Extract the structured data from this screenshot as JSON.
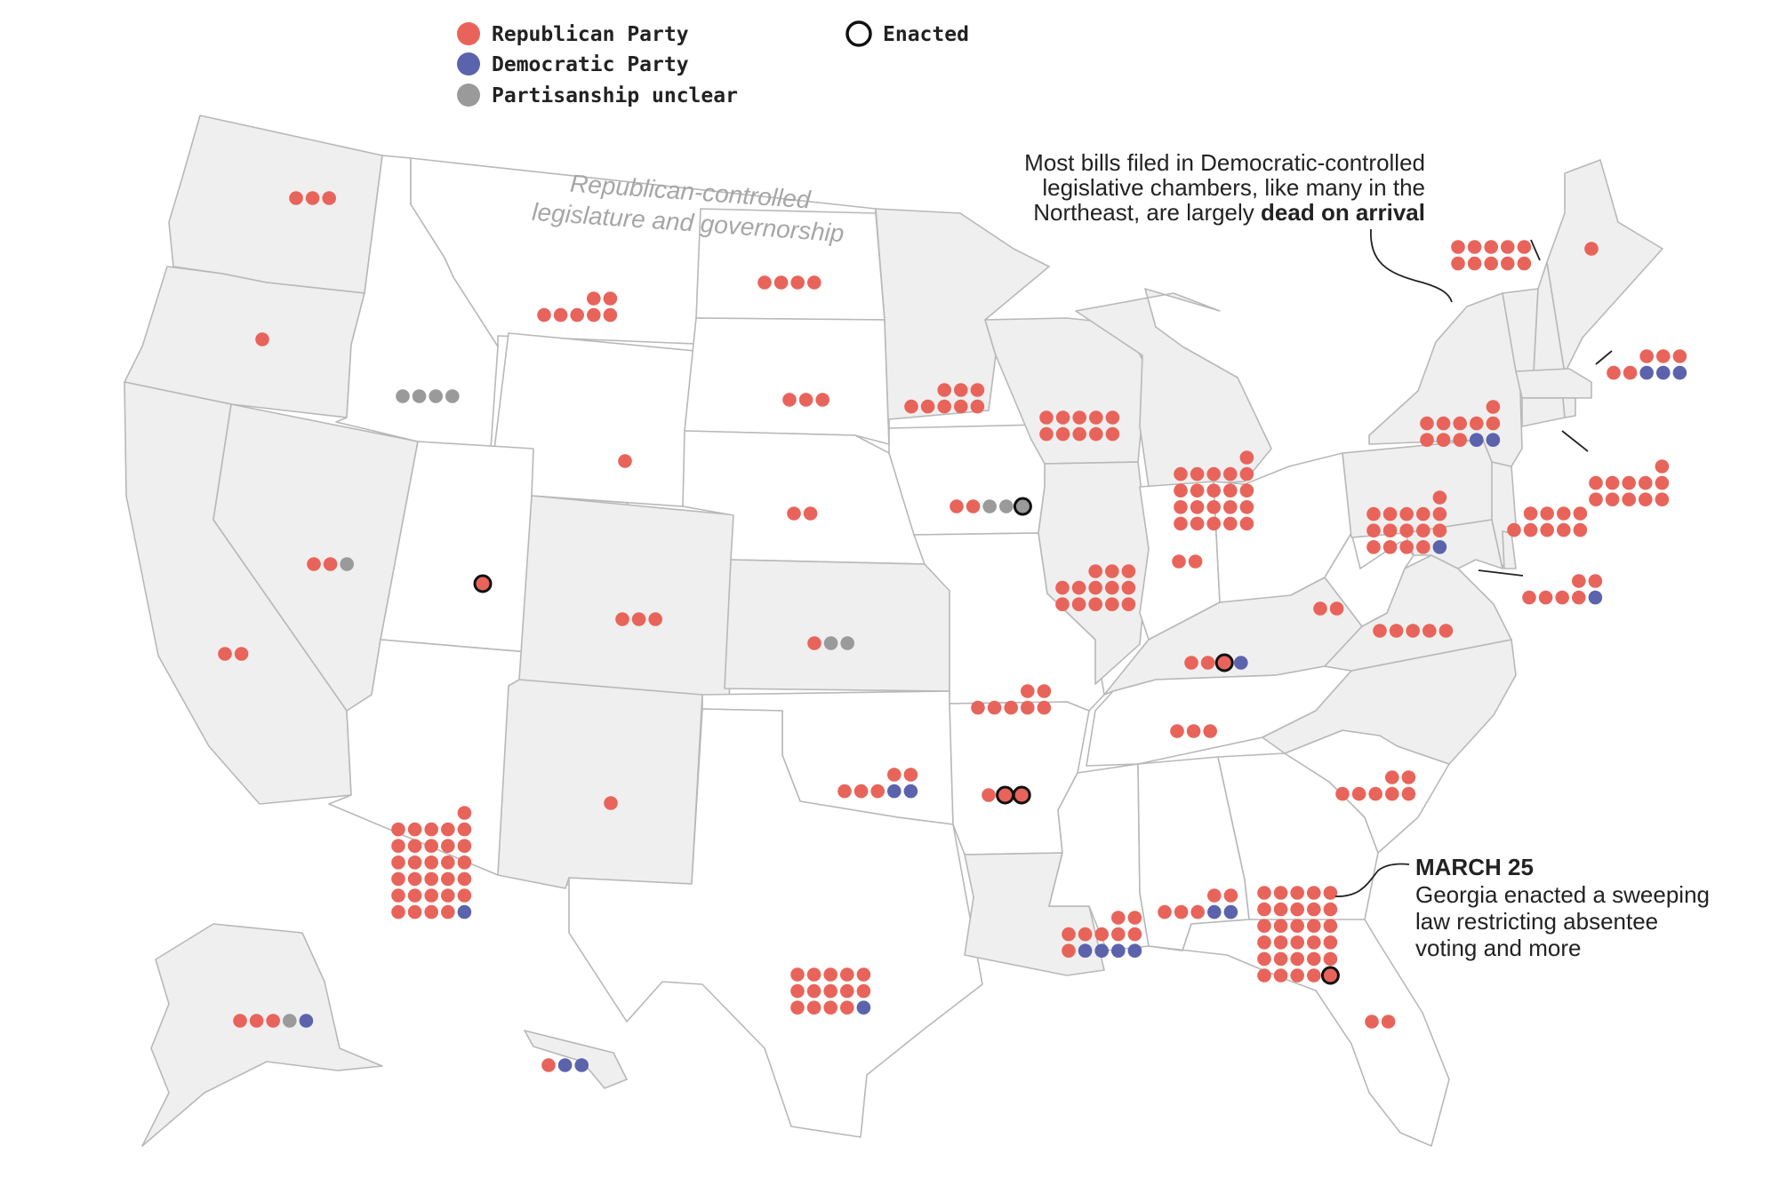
{
  "colors": {
    "republican": "#e8645a",
    "democratic": "#5b63ad",
    "unclear": "#9a9a9a",
    "enacted_ring": "#111111",
    "rep_controlled_fill": "#ffffff",
    "other_fill": "#efefef",
    "state_border": "#b8b8b8"
  },
  "legend": {
    "republican": "Republican Party",
    "democratic": "Democratic Party",
    "unclear": "Partisanship unclear",
    "enacted": "Enacted"
  },
  "map_label": {
    "line1": "Republican-controlled",
    "line2": "legislature and governorship"
  },
  "annotations": {
    "northeast": {
      "line1": "Most bills filed in Democratic-controlled",
      "line2": "legislative chambers, like many in the",
      "line3_prefix": "Northeast, are largely ",
      "line3_bold": "dead on arrival"
    },
    "georgia": {
      "heading": "MARCH 25",
      "line1": "Georgia enacted a sweeping",
      "line2": "law restricting absentee",
      "line3": "voting and more"
    }
  },
  "states": [
    {
      "name": "WA",
      "rep_controlled": false,
      "bills": "RRR"
    },
    {
      "name": "OR",
      "rep_controlled": false,
      "bills": "R"
    },
    {
      "name": "CA",
      "rep_controlled": false,
      "bills": "RR"
    },
    {
      "name": "NV",
      "rep_controlled": false,
      "bills": "RRU"
    },
    {
      "name": "ID",
      "rep_controlled": true,
      "bills": "UUUU"
    },
    {
      "name": "MT",
      "rep_controlled": true,
      "bills": "RRRRRRR"
    },
    {
      "name": "WY",
      "rep_controlled": true,
      "bills": "R"
    },
    {
      "name": "UT",
      "rep_controlled": true,
      "bills": "R",
      "enacted": 1
    },
    {
      "name": "AZ",
      "rep_controlled": true,
      "bills": "RRRRRRRRRRRRRRRRRRRRRRRRRRRRRRD"
    },
    {
      "name": "CO",
      "rep_controlled": false,
      "bills": "RRR"
    },
    {
      "name": "NM",
      "rep_controlled": false,
      "bills": "R"
    },
    {
      "name": "ND",
      "rep_controlled": true,
      "bills": "RRRR"
    },
    {
      "name": "SD",
      "rep_controlled": true,
      "bills": "RRR"
    },
    {
      "name": "NE",
      "rep_controlled": true,
      "bills": "RR"
    },
    {
      "name": "KS",
      "rep_controlled": false,
      "bills": "RUU"
    },
    {
      "name": "OK",
      "rep_controlled": true,
      "bills": "RRRRRDD"
    },
    {
      "name": "TX",
      "rep_controlled": true,
      "bills": "RRRRRRRRRRRRRRD"
    },
    {
      "name": "MN",
      "rep_controlled": false,
      "bills": "RRRRRRRR"
    },
    {
      "name": "IA",
      "rep_controlled": true,
      "bills": "RRUUU",
      "enacted": 1
    },
    {
      "name": "MO",
      "rep_controlled": true,
      "bills": "RRRRRRR"
    },
    {
      "name": "AR",
      "rep_controlled": true,
      "bills": "RRR",
      "enacted": 2
    },
    {
      "name": "LA",
      "rep_controlled": false,
      "bills": ""
    },
    {
      "name": "WI",
      "rep_controlled": false,
      "bills": "RRRRRRRRRR"
    },
    {
      "name": "IL",
      "rep_controlled": false,
      "bills": "RRRRRRRRRRRRR"
    },
    {
      "name": "MI",
      "rep_controlled": false,
      "bills": "RRRRRRRRRRRRRRRRRRRRR"
    },
    {
      "name": "IN",
      "rep_controlled": true,
      "bills": "RR"
    },
    {
      "name": "OH",
      "rep_controlled": true,
      "bills": ""
    },
    {
      "name": "KY",
      "rep_controlled": false,
      "bills": "RRRD",
      "enacted": 1
    },
    {
      "name": "TN",
      "rep_controlled": true,
      "bills": "RRR"
    },
    {
      "name": "MS",
      "rep_controlled": true,
      "bills": "RRRRRRRRDDDD"
    },
    {
      "name": "AL",
      "rep_controlled": true,
      "bills": "RRRRRDD"
    },
    {
      "name": "GA",
      "rep_controlled": true,
      "bills": "RRRRRRRRRRRRRRRRRRRRRRRRRRRRRR",
      "enacted": 1
    },
    {
      "name": "FL",
      "rep_controlled": true,
      "bills": "RR"
    },
    {
      "name": "SC",
      "rep_controlled": true,
      "bills": "RRRRRRR"
    },
    {
      "name": "NC",
      "rep_controlled": false,
      "bills": ""
    },
    {
      "name": "VA",
      "rep_controlled": false,
      "bills": "RRRRR"
    },
    {
      "name": "WV",
      "rep_controlled": true,
      "bills": "RR"
    },
    {
      "name": "PA",
      "rep_controlled": false,
      "bills": "RRRRRRRRRRRRRRRD"
    },
    {
      "name": "NY",
      "rep_controlled": false,
      "bills": "RRRRRRRRRDD"
    },
    {
      "name": "NJ",
      "rep_controlled": false,
      "bills": "RRRRRRRRR"
    },
    {
      "name": "MD",
      "rep_controlled": false,
      "bills": "RRRRRRD"
    },
    {
      "name": "VT",
      "rep_controlled": false,
      "bills": "RRRRRRRRRR"
    },
    {
      "name": "ME",
      "rep_controlled": false,
      "bills": "R"
    },
    {
      "name": "MA",
      "rep_controlled": false,
      "bills": "RRRRRDDD"
    },
    {
      "name": "CT",
      "rep_controlled": false,
      "bills": "RRRRRRRRRRR"
    },
    {
      "name": "AK",
      "rep_controlled": false,
      "bills": "RRRUD"
    },
    {
      "name": "HI",
      "rep_controlled": false,
      "bills": "RDD"
    }
  ]
}
